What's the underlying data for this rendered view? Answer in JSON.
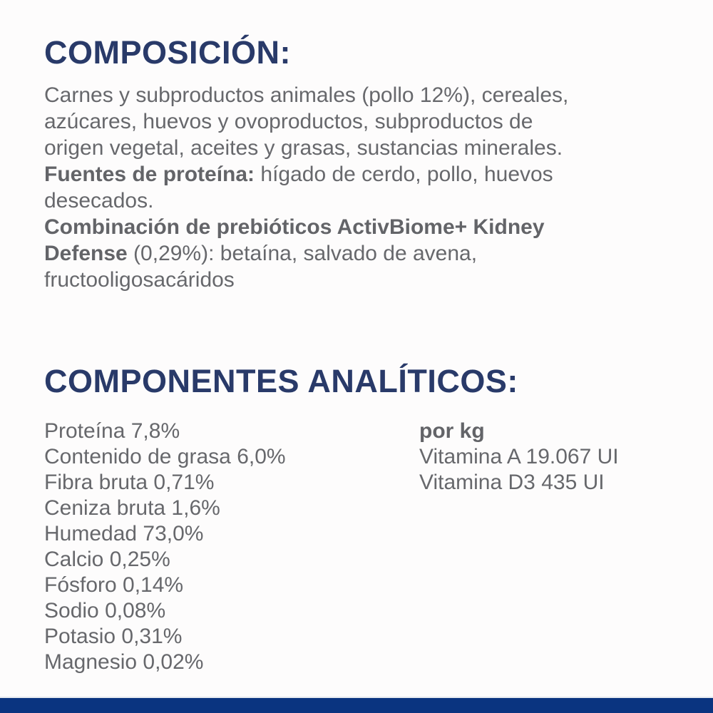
{
  "page": {
    "background_color": "#fdfcfc",
    "heading_color": "#293a69",
    "body_text_color": "#67686c",
    "bottom_bar_color": "#0a3480"
  },
  "composition": {
    "heading": "COMPOSICIÓN:",
    "lines": [
      {
        "bold": "",
        "rest": "Carnes y subproductos animales (pollo 12%), cereales,"
      },
      {
        "bold": "",
        "rest": "azúcares, huevos y ovoproductos, subproductos de"
      },
      {
        "bold": "",
        "rest": "origen vegetal, aceites y grasas, sustancias minerales."
      },
      {
        "bold": "Fuentes de proteína:",
        "rest": " hígado de cerdo, pollo, huevos"
      },
      {
        "bold": "",
        "rest": "desecados."
      },
      {
        "bold": "Combinación de prebióticos ActivBiome+ Kidney",
        "rest": ""
      },
      {
        "bold": "Defense",
        "rest": " (0,29%): betaína, salvado de avena,"
      },
      {
        "bold": "",
        "rest": "fructooligosacáridos"
      }
    ]
  },
  "analytics": {
    "heading": "COMPONENTES ANALÍTICOS:",
    "left_items": [
      "Proteína 7,8%",
      "Contenido de grasa 6,0%",
      "Fibra bruta 0,71%",
      "Ceniza bruta 1,6%",
      "Humedad 73,0%",
      "Calcio 0,25%",
      "Fósforo 0,14%",
      "Sodio 0,08%",
      "Potasio 0,31%",
      "Magnesio 0,02%"
    ],
    "right_header": "por kg",
    "right_items": [
      "Vitamina A 19.067 UI",
      "Vitamina D3 435 UI"
    ]
  }
}
